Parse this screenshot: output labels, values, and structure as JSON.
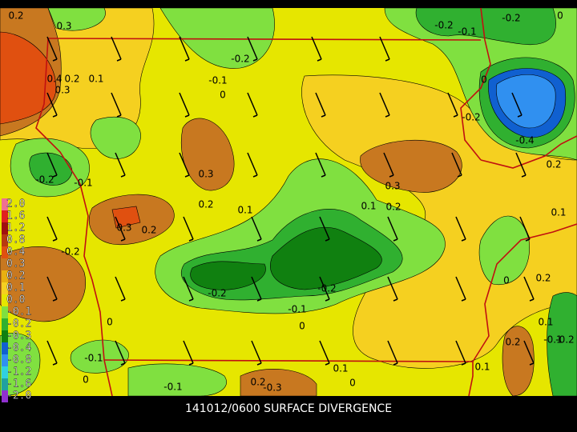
{
  "title": "141012/0600 SURFACE DIVERGENCE",
  "legend": [
    {
      "label": "2.0",
      "color": "#f07090"
    },
    {
      "label": "1.6",
      "color": "#e02020"
    },
    {
      "label": "1.2",
      "color": "#a01010"
    },
    {
      "label": "0.8",
      "color": "#b83a10"
    },
    {
      "label": "0.4",
      "color": "#e05010"
    },
    {
      "label": "0.3",
      "color": "#c87820"
    },
    {
      "label": "0.2",
      "color": "#e8b010"
    },
    {
      "label": "0.1",
      "color": "#f5d020"
    },
    {
      "label": "0.0",
      "color": "#e6e600"
    },
    {
      "label": "-0.1",
      "color": "#80e040"
    },
    {
      "label": "-0.2",
      "color": "#30b030"
    },
    {
      "label": "-0.3",
      "color": "#108010"
    },
    {
      "label": "-0.4",
      "color": "#1060d0"
    },
    {
      "label": "-0.8",
      "color": "#3090f0"
    },
    {
      "label": "-1.2",
      "color": "#30d0e0"
    },
    {
      "label": "-1.6",
      "color": "#20a0a0"
    },
    {
      "label": "-2.0",
      "color": "#9030d0"
    }
  ],
  "contour_labels": [
    "0.2",
    "0.3",
    "0.4",
    "0.2",
    "0.1",
    "0.3",
    "-0.1",
    "-0.2",
    "0",
    "-0.2",
    "-0.1",
    "-0.2",
    "0",
    "0",
    "-0.2",
    "-0.4",
    "0.2",
    "0.3",
    "0.3",
    "0.1",
    "0.2",
    "-0.2",
    "-0.1",
    "0.2",
    "0.1",
    "0.3",
    "0.2",
    "0.1",
    "-0.2",
    "-0.2",
    "-0.2",
    "-0.1",
    "0",
    "0",
    "0.2",
    "0",
    "0.1",
    "-0.1",
    "0.2",
    "-0.1",
    "-0.2",
    "0",
    "0.1",
    "0.1",
    "-0.1",
    "0.2",
    "-0.3",
    "0"
  ]
}
